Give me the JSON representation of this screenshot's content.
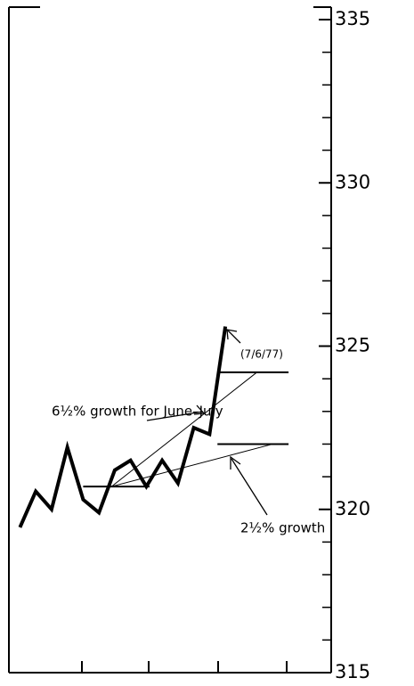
{
  "chart_data": {
    "type": "line",
    "x": [
      0,
      1,
      2,
      3,
      4,
      5,
      6,
      7,
      8,
      9,
      10,
      11,
      12,
      13
    ],
    "series": [
      {
        "color": "#000000",
        "width": 4,
        "values": [
          319.45,
          320.55,
          320.0,
          321.9,
          320.3,
          319.9,
          321.2,
          321.5,
          320.7,
          321.5,
          320.8,
          322.5,
          322.3,
          325.6
        ]
      },
      {
        "color": "#000000",
        "width": 2,
        "x": [
          4,
          8.2
        ],
        "values": [
          320.7,
          320.7
        ]
      },
      {
        "color": "#000000",
        "width": 2,
        "x": [
          12.5,
          17
        ],
        "values": [
          324.2,
          324.2
        ]
      },
      {
        "color": "#000000",
        "width": 2,
        "x": [
          12.5,
          17
        ],
        "values": [
          322.0,
          322.0
        ]
      },
      {
        "color": "#000000",
        "width": 1,
        "x": [
          5.8,
          15
        ],
        "values": [
          320.7,
          324.2
        ]
      },
      {
        "color": "#000000",
        "width": 1,
        "x": [
          5.8,
          16
        ],
        "values": [
          320.7,
          322.0
        ]
      }
    ],
    "annotations": [
      "6½% growth for June–July",
      "(7/6/77)",
      "2½% growth"
    ],
    "xlim": [
      -0.7,
      19.7
    ],
    "ylim": [
      315,
      335
    ],
    "yticks": [
      315,
      320,
      325,
      330,
      335
    ],
    "yminorticks": [
      316,
      317,
      318,
      319,
      321,
      322,
      323,
      324,
      326,
      327,
      328,
      329,
      331,
      332,
      333,
      334
    ]
  }
}
